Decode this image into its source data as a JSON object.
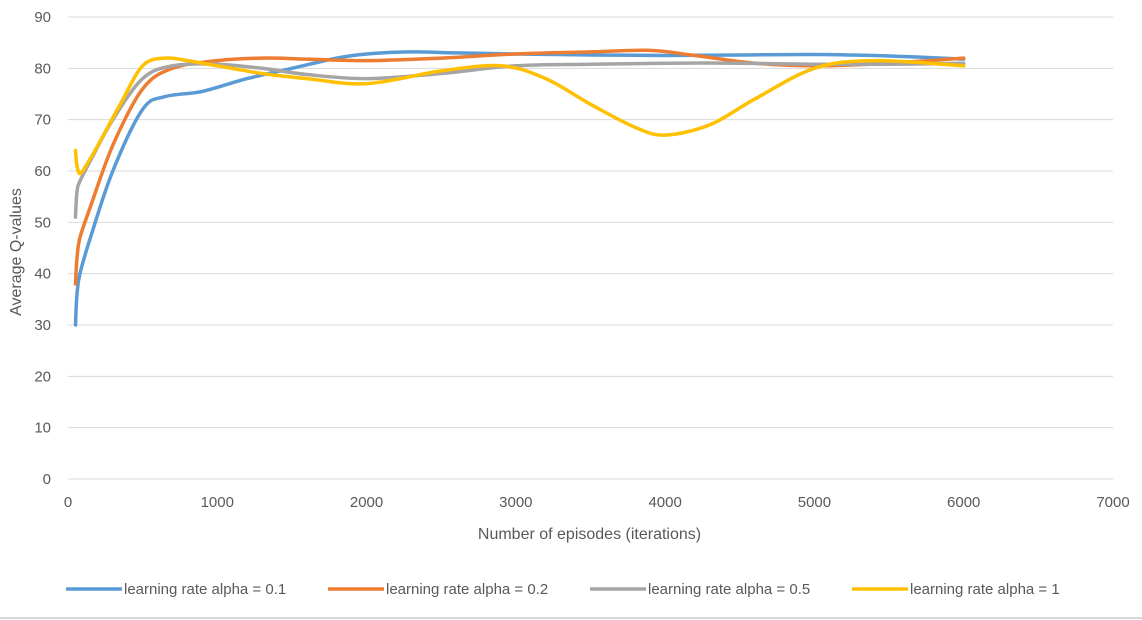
{
  "chart_data": {
    "type": "line",
    "title": "",
    "xlabel": "Number of episodes (iterations)",
    "ylabel": "Average Q-values",
    "xlim": [
      0,
      7000
    ],
    "ylim": [
      0,
      90
    ],
    "x_ticks": [
      0,
      1000,
      2000,
      3000,
      4000,
      5000,
      6000,
      7000
    ],
    "y_ticks": [
      0,
      10,
      20,
      30,
      40,
      50,
      60,
      70,
      80,
      90
    ],
    "grid": "horizontal",
    "legend_position": "bottom",
    "series": [
      {
        "name": "learning rate alpha = 0.1",
        "color": "#5b9bd5",
        "x": [
          50,
          60,
          80,
          150,
          300,
          500,
          650,
          900,
          1200,
          1500,
          1800,
          2000,
          2300,
          2600,
          3000,
          3500,
          4000,
          4500,
          5000,
          5500,
          6000
        ],
        "y": [
          30,
          36,
          40,
          47,
          60,
          72,
          74.5,
          75.5,
          78,
          80,
          82,
          82.8,
          83.2,
          83,
          82.8,
          82.6,
          82.5,
          82.6,
          82.7,
          82.4,
          81.8
        ]
      },
      {
        "name": "learning rate alpha = 0.2",
        "color": "#ed7d31",
        "x": [
          50,
          60,
          80,
          150,
          300,
          500,
          700,
          1000,
          1300,
          1600,
          2000,
          2500,
          3000,
          3500,
          3900,
          4200,
          4600,
          5000,
          5500,
          6000
        ],
        "y": [
          38,
          43,
          47,
          53,
          65,
          76,
          80,
          81.5,
          82,
          81.8,
          81.5,
          82,
          82.8,
          83.2,
          83.5,
          82.5,
          81,
          80.5,
          81,
          82
        ]
      },
      {
        "name": "learning rate alpha = 0.5",
        "color": "#a5a5a5",
        "x": [
          50,
          60,
          80,
          150,
          300,
          500,
          700,
          1000,
          1300,
          1600,
          2000,
          2500,
          3000,
          3500,
          4000,
          4500,
          5000,
          5500,
          6000
        ],
        "y": [
          51,
          56,
          58,
          62,
          70,
          78,
          80.5,
          80.8,
          80,
          78.8,
          78,
          79,
          80.5,
          80.8,
          81,
          81,
          80.8,
          80.8,
          81
        ]
      },
      {
        "name": "learning rate alpha = 1",
        "color": "#ffc000",
        "x": [
          50,
          60,
          80,
          120,
          200,
          350,
          500,
          650,
          800,
          1000,
          1300,
          1600,
          2000,
          2500,
          2900,
          3200,
          3500,
          3800,
          4000,
          4300,
          4600,
          5000,
          5400,
          6000
        ],
        "y": [
          64,
          61,
          59.5,
          61,
          65,
          73,
          80.5,
          82,
          81.5,
          80.5,
          79,
          78,
          77,
          79.5,
          80.5,
          78,
          73,
          68.5,
          67,
          69,
          74,
          80,
          81.5,
          80.5
        ]
      }
    ]
  }
}
